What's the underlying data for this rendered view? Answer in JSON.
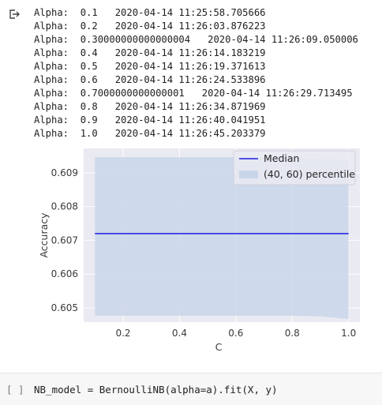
{
  "output": {
    "icon": "output-arrow-icon",
    "lines": [
      "Alpha:  0.1   2020-04-14 11:25:58.705666",
      "Alpha:  0.2   2020-04-14 11:26:03.876223",
      "Alpha:  0.30000000000000004   2020-04-14 11:26:09.050006",
      "Alpha:  0.4   2020-04-14 11:26:14.183219",
      "Alpha:  0.5   2020-04-14 11:26:19.371613",
      "Alpha:  0.6   2020-04-14 11:26:24.533896",
      "Alpha:  0.7000000000000001   2020-04-14 11:26:29.713495",
      "Alpha:  0.8   2020-04-14 11:26:34.871969",
      "Alpha:  0.9   2020-04-14 11:26:40.041951",
      "Alpha:  1.0   2020-04-14 11:26:45.203379"
    ]
  },
  "chart_data": {
    "type": "line",
    "xlabel": "C",
    "ylabel": "Accuracy",
    "xlim": [
      0.06,
      1.04
    ],
    "ylim": [
      0.60458,
      0.60972
    ],
    "xticks": [
      0.2,
      0.4,
      0.6,
      0.8,
      1.0
    ],
    "xtick_labels": [
      "0.2",
      "0.4",
      "0.6",
      "0.8",
      "1.0"
    ],
    "yticks": [
      0.605,
      0.606,
      0.607,
      0.608,
      0.609
    ],
    "ytick_labels": [
      "0.605",
      "0.606",
      "0.607",
      "0.608",
      "0.609"
    ],
    "grid": true,
    "legend_position": "top-right",
    "series": [
      {
        "name": "Median",
        "type": "line",
        "color": "#1f1fe0",
        "x": [
          0.1,
          0.2,
          0.3,
          0.4,
          0.5,
          0.6,
          0.7,
          0.8,
          0.9,
          1.0
        ],
        "y": [
          0.6072,
          0.6072,
          0.6072,
          0.6072,
          0.6072,
          0.6072,
          0.6072,
          0.6072,
          0.6072,
          0.6072
        ]
      },
      {
        "name": "(40, 60) percentile",
        "type": "band",
        "color": "#c9d6ea",
        "x": [
          0.1,
          0.2,
          0.3,
          0.4,
          0.5,
          0.6,
          0.7,
          0.8,
          0.9,
          1.0
        ],
        "lower": [
          0.60477,
          0.60477,
          0.60477,
          0.60477,
          0.60477,
          0.60477,
          0.60477,
          0.60477,
          0.60475,
          0.60467
        ],
        "upper": [
          0.60946,
          0.60946,
          0.60946,
          0.60946,
          0.60946,
          0.60946,
          0.60946,
          0.60946,
          0.60941,
          0.60938
        ]
      }
    ]
  },
  "cell": {
    "prompt": "[ ]",
    "code": "NB_model = BernoulliNB(alpha=a).fit(X, y)"
  }
}
